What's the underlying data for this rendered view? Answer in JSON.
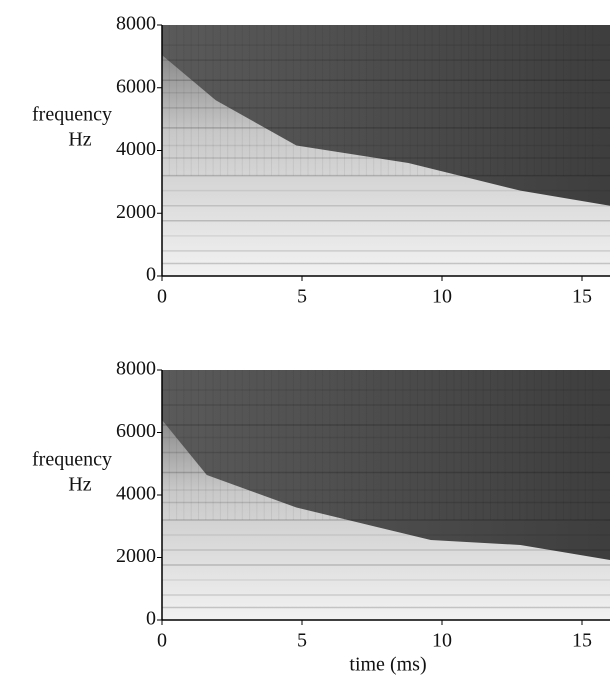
{
  "chart_data": [
    {
      "type": "spectrogram",
      "ylabel": [
        "frequency",
        "Hz"
      ],
      "xlim": [
        0,
        16
      ],
      "xticks": [
        0,
        5,
        10,
        15
      ],
      "ylim": [
        0,
        8000
      ],
      "yticks": [
        0,
        2000,
        4000,
        6000,
        8000
      ]
    },
    {
      "type": "spectrogram",
      "ylabel": [
        "frequency",
        "Hz"
      ],
      "xlabel": "time (ms)",
      "xlim": [
        0,
        16
      ],
      "xticks": [
        0,
        5,
        10,
        15
      ],
      "ylim": [
        0,
        8000
      ],
      "yticks": [
        0,
        2000,
        4000,
        6000,
        8000
      ]
    }
  ]
}
